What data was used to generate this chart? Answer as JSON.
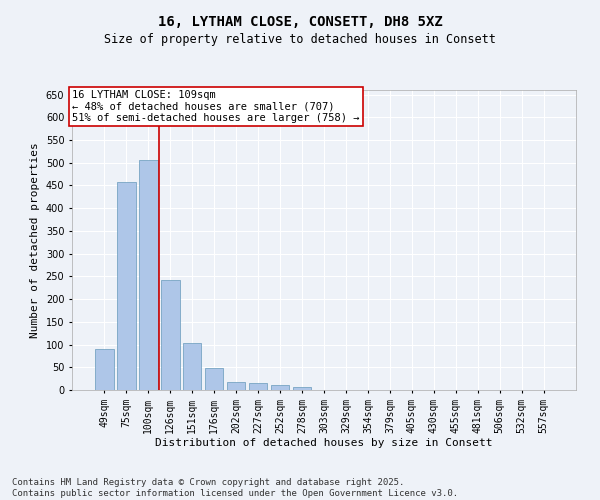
{
  "title_line1": "16, LYTHAM CLOSE, CONSETT, DH8 5XZ",
  "title_line2": "Size of property relative to detached houses in Consett",
  "xlabel": "Distribution of detached houses by size in Consett",
  "ylabel": "Number of detached properties",
  "categories": [
    "49sqm",
    "75sqm",
    "100sqm",
    "126sqm",
    "151sqm",
    "176sqm",
    "202sqm",
    "227sqm",
    "252sqm",
    "278sqm",
    "303sqm",
    "329sqm",
    "354sqm",
    "379sqm",
    "405sqm",
    "430sqm",
    "455sqm",
    "481sqm",
    "506sqm",
    "532sqm",
    "557sqm"
  ],
  "values": [
    91,
    458,
    507,
    242,
    103,
    49,
    18,
    15,
    10,
    6,
    1,
    0,
    0,
    0,
    0,
    0,
    0,
    0,
    0,
    1,
    0
  ],
  "bar_color": "#aec6e8",
  "bar_edge_color": "#6699bb",
  "property_line_index": 2,
  "property_line_color": "#cc0000",
  "annotation_text": "16 LYTHAM CLOSE: 109sqm\n← 48% of detached houses are smaller (707)\n51% of semi-detached houses are larger (758) →",
  "annotation_box_color": "#ffffff",
  "annotation_box_edge_color": "#cc0000",
  "ylim": [
    0,
    660
  ],
  "yticks": [
    0,
    50,
    100,
    150,
    200,
    250,
    300,
    350,
    400,
    450,
    500,
    550,
    600,
    650
  ],
  "footer_line1": "Contains HM Land Registry data © Crown copyright and database right 2025.",
  "footer_line2": "Contains public sector information licensed under the Open Government Licence v3.0.",
  "background_color": "#eef2f8",
  "grid_color": "#ffffff",
  "title_fontsize": 10,
  "subtitle_fontsize": 8.5,
  "axis_label_fontsize": 8,
  "tick_fontsize": 7,
  "annotation_fontsize": 7.5,
  "footer_fontsize": 6.5
}
